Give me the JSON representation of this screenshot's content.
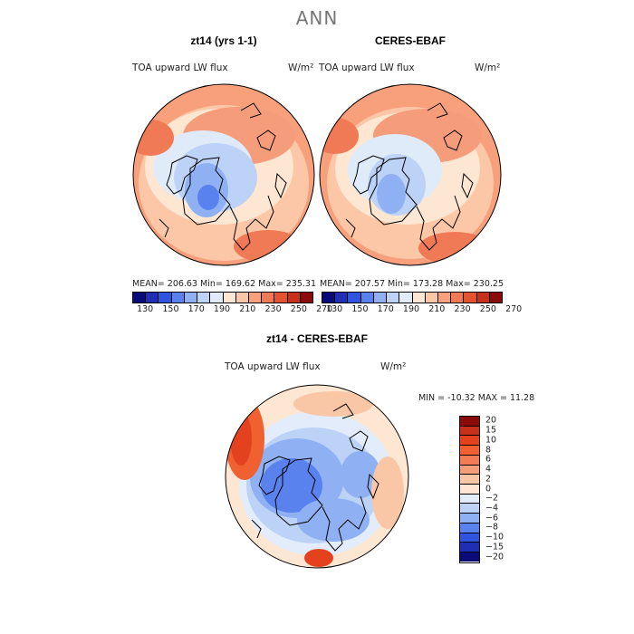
{
  "figure": {
    "title": "ANN"
  },
  "panels": [
    {
      "title": "zt14 (yrs 1-1)",
      "variable": "TOA upward LW flux",
      "units": "W/m²",
      "stats": "MEAN= 206.63   Min= 169.62   Max= 235.31"
    },
    {
      "title": "CERES-EBAF",
      "variable": "TOA upward LW flux",
      "units": "W/m²",
      "stats": "MEAN= 207.57   Min= 173.28   Max= 230.25"
    },
    {
      "title": "zt14 - CERES-EBAF",
      "variable": "TOA upward LW flux",
      "units": "W/m²",
      "stats": "MIN = -10.32  MAX =   11.28"
    }
  ],
  "colorbar_abs": {
    "labels": [
      "130",
      "150",
      "170",
      "190",
      "210",
      "230",
      "250",
      "270"
    ],
    "colors": [
      "#0a0a78",
      "#1e2fb4",
      "#2f55e0",
      "#5a82ee",
      "#8fb1f3",
      "#bcd2f7",
      "#e0ebfa",
      "#fde6d2",
      "#fbc7a6",
      "#f7a07b",
      "#f07a55",
      "#e4522f",
      "#c7301b",
      "#8b0a0a"
    ]
  },
  "colorbar_diff": {
    "labels": [
      "20",
      "15",
      "10",
      "8",
      "6",
      "4",
      "2",
      "0",
      "−2",
      "−4",
      "−6",
      "−8",
      "−10",
      "−15",
      "−20"
    ],
    "colors": [
      "#8b0a0a",
      "#c7301b",
      "#e4421f",
      "#f06030",
      "#f27c55",
      "#f59c7b",
      "#f9c6a6",
      "#fde6d2",
      "#e2ecfa",
      "#bcd2f7",
      "#8fb1f3",
      "#5a82ee",
      "#2f55e0",
      "#1e2fb4",
      "#0a0a78"
    ]
  }
}
